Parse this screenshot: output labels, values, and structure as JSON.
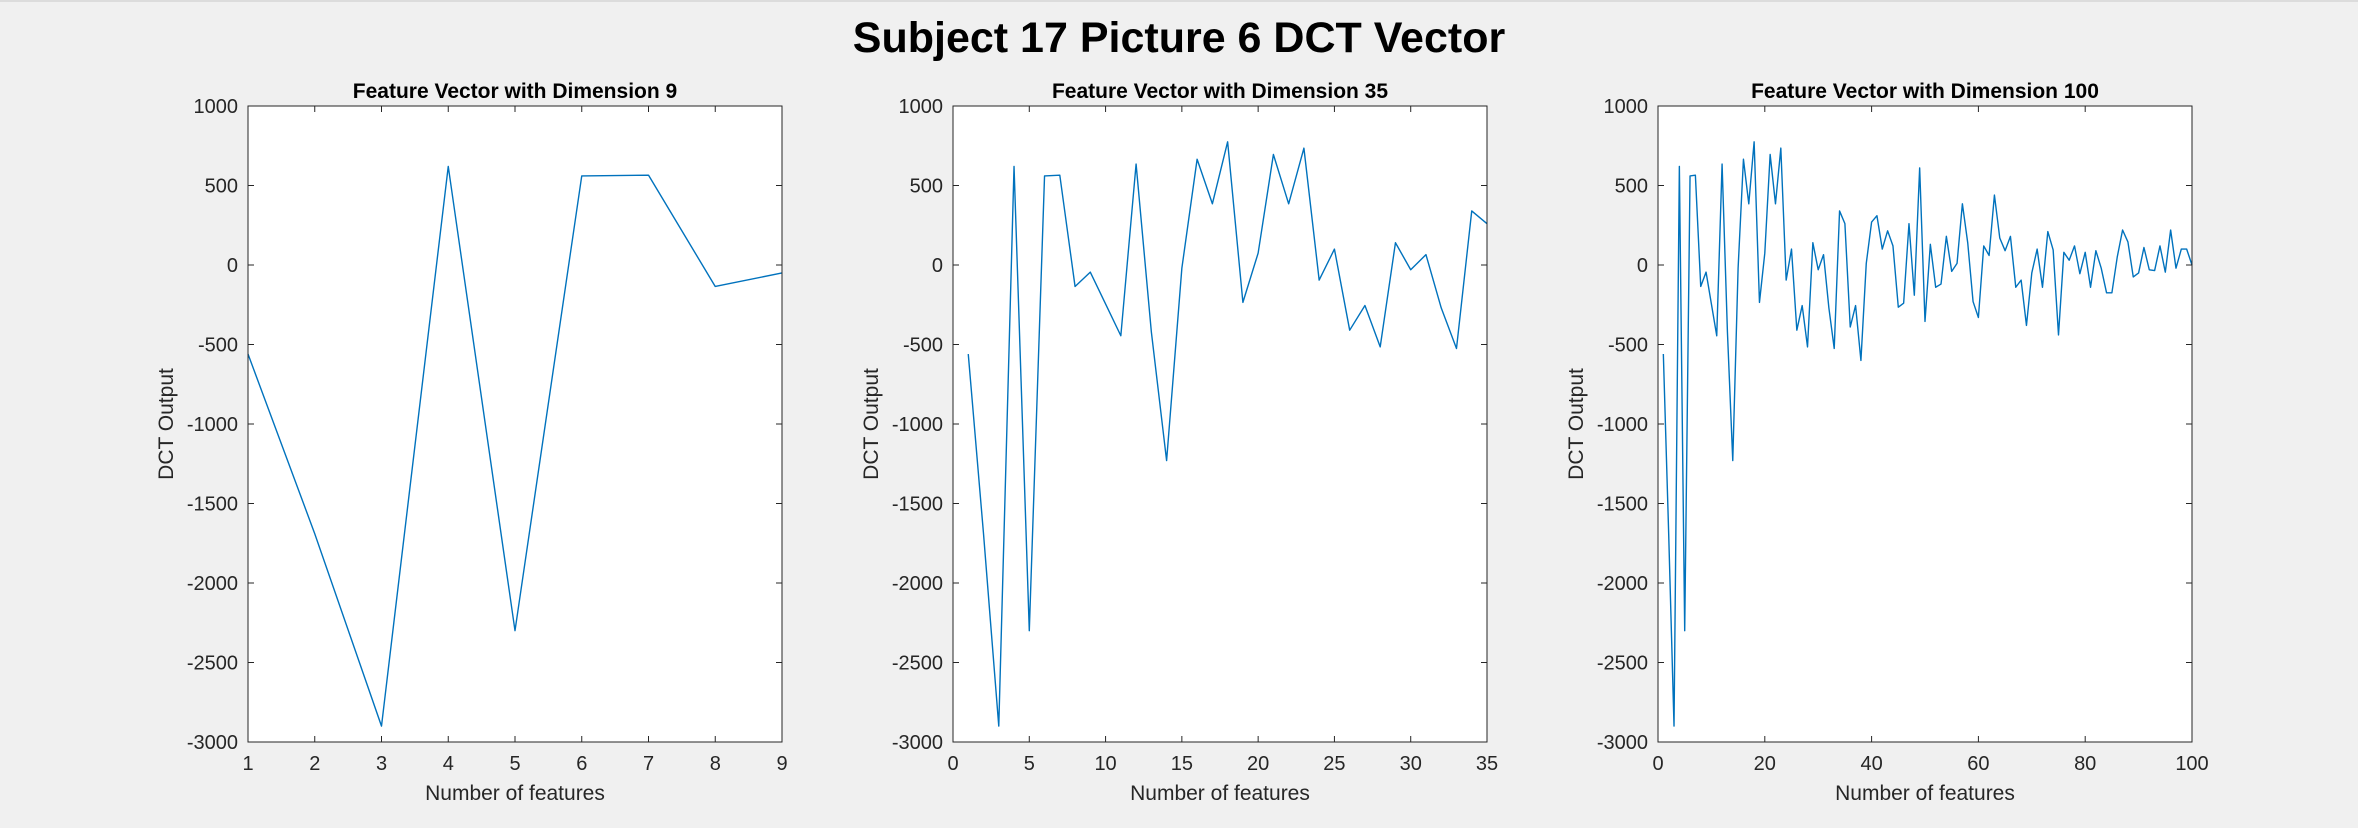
{
  "figure": {
    "title": "Subject 17 Picture 6 DCT Vector",
    "background": "#f0f0f0",
    "line_color": "#0072bd"
  },
  "chart_data": [
    {
      "type": "line",
      "title": "Feature Vector with Dimension 9",
      "xlabel": "Number of features",
      "ylabel": "DCT Output",
      "xlim": [
        1,
        9
      ],
      "ylim": [
        -3000,
        1000
      ],
      "xticks": [
        1,
        2,
        3,
        4,
        5,
        6,
        7,
        8,
        9
      ],
      "yticks": [
        1000,
        500,
        0,
        -500,
        -1000,
        -1500,
        -2000,
        -2500,
        -3000
      ],
      "grid": false,
      "x": [
        1,
        2,
        3,
        4,
        5,
        6,
        7,
        8,
        9
      ],
      "y": [
        -560,
        -1690,
        -2900,
        620,
        -2300,
        560,
        565,
        -135,
        -50
      ]
    },
    {
      "type": "line",
      "title": "Feature Vector with Dimension 35",
      "xlabel": "Number of features",
      "ylabel": "DCT Output",
      "xlim": [
        0,
        35
      ],
      "ylim": [
        -3000,
        1000
      ],
      "xticks": [
        0,
        5,
        10,
        15,
        20,
        25,
        30,
        35
      ],
      "yticks": [
        1000,
        500,
        0,
        -500,
        -1000,
        -1500,
        -2000,
        -2500,
        -3000
      ],
      "grid": false,
      "x": [
        1,
        2,
        3,
        4,
        5,
        6,
        7,
        8,
        9,
        10,
        11,
        12,
        13,
        14,
        15,
        16,
        17,
        18,
        19,
        20,
        21,
        22,
        23,
        24,
        25,
        26,
        27,
        28,
        29,
        30,
        31,
        32,
        33,
        34,
        35
      ],
      "y": [
        -560,
        -1690,
        -2900,
        620,
        -2300,
        560,
        565,
        -135,
        -45,
        -245,
        -445,
        635,
        -420,
        -1230,
        -20,
        665,
        385,
        775,
        -235,
        75,
        695,
        385,
        735,
        -95,
        100,
        -410,
        -255,
        -515,
        140,
        -30,
        65,
        -270,
        -525,
        340,
        260
      ]
    },
    {
      "type": "line",
      "title": "Feature Vector with Dimension 100",
      "xlabel": "Number of features",
      "ylabel": "DCT Output",
      "xlim": [
        0,
        100
      ],
      "ylim": [
        -3000,
        1000
      ],
      "xticks": [
        0,
        20,
        40,
        60,
        80,
        100
      ],
      "yticks": [
        1000,
        500,
        0,
        -500,
        -1000,
        -1500,
        -2000,
        -2500,
        -3000
      ],
      "grid": false,
      "x": [
        1,
        2,
        3,
        4,
        5,
        6,
        7,
        8,
        9,
        10,
        11,
        12,
        13,
        14,
        15,
        16,
        17,
        18,
        19,
        20,
        21,
        22,
        23,
        24,
        25,
        26,
        27,
        28,
        29,
        30,
        31,
        32,
        33,
        34,
        35,
        36,
        37,
        38,
        39,
        40,
        41,
        42,
        43,
        44,
        45,
        46,
        47,
        48,
        49,
        50,
        51,
        52,
        53,
        54,
        55,
        56,
        57,
        58,
        59,
        60,
        61,
        62,
        63,
        64,
        65,
        66,
        67,
        68,
        69,
        70,
        71,
        72,
        73,
        74,
        75,
        76,
        77,
        78,
        79,
        80,
        81,
        82,
        83,
        84,
        85,
        86,
        87,
        88,
        89,
        90,
        91,
        92,
        93,
        94,
        95,
        96,
        97,
        98,
        99,
        100
      ],
      "y": [
        -560,
        -1690,
        -2900,
        620,
        -2300,
        560,
        565,
        -135,
        -45,
        -245,
        -445,
        635,
        -420,
        -1230,
        -20,
        665,
        385,
        775,
        -235,
        75,
        695,
        385,
        735,
        -95,
        100,
        -410,
        -255,
        -515,
        140,
        -30,
        65,
        -270,
        -525,
        340,
        260,
        -390,
        -255,
        -600,
        10,
        270,
        310,
        100,
        215,
        120,
        -265,
        -240,
        260,
        -190,
        610,
        -355,
        130,
        -140,
        -120,
        180,
        -40,
        10,
        385,
        140,
        -230,
        -330,
        120,
        60,
        440,
        170,
        90,
        180,
        -140,
        -95,
        -380,
        -50,
        100,
        -140,
        210,
        95,
        -440,
        80,
        30,
        120,
        -55,
        80,
        -140,
        90,
        -20,
        -175,
        -175,
        50,
        220,
        145,
        -75,
        -50,
        110,
        -30,
        -35,
        120,
        -45,
        220,
        -20,
        100,
        100,
        0
      ]
    }
  ]
}
